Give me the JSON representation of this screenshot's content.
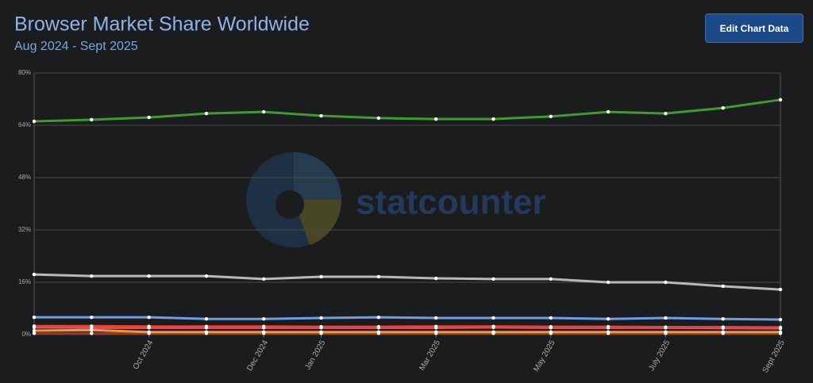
{
  "chart_data": {
    "type": "line",
    "title": "Browser Market Share Worldwide",
    "subtitle": "Aug 2024 - Sept 2025",
    "button": "Edit Chart Data",
    "watermark": "statcounter",
    "categories": [
      null,
      null,
      "Oct 2024",
      null,
      "Dec 2024",
      "Jan 2025",
      null,
      "Mar 2025",
      null,
      "May 2025",
      null,
      "July 2025",
      null,
      "Sept 2025"
    ],
    "series": [
      {
        "color": "#3f9a2f",
        "values": [
          65.2,
          65.7,
          66.4,
          67.6,
          68.1,
          66.9,
          66.2,
          65.9,
          65.9,
          66.7,
          68.1,
          67.6,
          69.3,
          71.8
        ]
      },
      {
        "color": "#b8b8b8",
        "values": [
          18.4,
          17.9,
          17.9,
          17.9,
          17.0,
          17.7,
          17.7,
          17.2,
          17.0,
          17.0,
          16.0,
          16.0,
          14.8,
          13.8
        ]
      },
      {
        "color": "#6d9eeb",
        "values": [
          5.3,
          5.3,
          5.3,
          4.8,
          4.8,
          5.1,
          5.3,
          5.1,
          5.1,
          5.1,
          4.8,
          5.1,
          4.8,
          4.6
        ]
      },
      {
        "color": "#e8452c",
        "values": [
          2.6,
          2.6,
          2.5,
          2.5,
          2.5,
          2.4,
          2.4,
          2.5,
          2.5,
          2.4,
          2.4,
          2.3,
          2.3,
          2.2
        ]
      },
      {
        "color": "#d94f8a",
        "values": [
          2.2,
          2.1,
          2.1,
          2.1,
          2.1,
          2.1,
          2.1,
          2.1,
          2.2,
          2.1,
          2.1,
          2.1,
          2.0,
          1.9
        ]
      },
      {
        "color": "#e8a02c",
        "values": [
          1.2,
          1.4,
          0.8,
          0.8,
          0.8,
          0.8,
          0.8,
          0.8,
          0.8,
          0.8,
          0.8,
          0.8,
          0.8,
          0.8
        ]
      },
      {
        "color": "#b52a1c",
        "values": [
          0.4,
          0.4,
          0.4,
          0.4,
          0.4,
          0.4,
          0.4,
          0.4,
          0.4,
          0.4,
          0.4,
          0.4,
          0.4,
          0.4
        ]
      }
    ],
    "ylim": [
      0,
      80
    ],
    "yticks": [
      {
        "value": 0,
        "label": "0%"
      },
      {
        "value": 16,
        "label": "16%"
      },
      {
        "value": 32,
        "label": "32%"
      },
      {
        "value": 48,
        "label": "48%"
      },
      {
        "value": 64,
        "label": "64%"
      },
      {
        "value": 80,
        "label": "80%"
      }
    ],
    "grid": true
  }
}
